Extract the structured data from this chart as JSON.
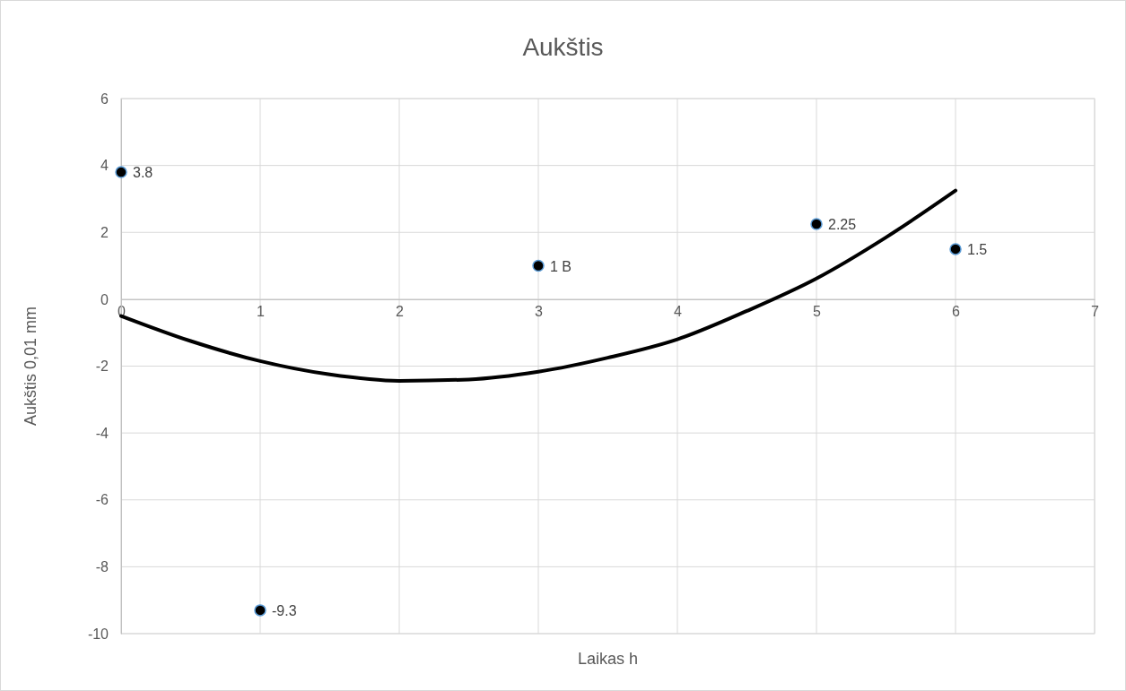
{
  "chart_data": {
    "type": "scatter",
    "title": "Aukštis",
    "xlabel": "Laikas h",
    "ylabel": "Aukštis 0,01 mm",
    "xlim": [
      0,
      7
    ],
    "xticks": [
      0,
      1,
      2,
      3,
      4,
      5,
      6,
      7
    ],
    "ylim": [
      -10,
      6
    ],
    "yticks": [
      -10,
      -8,
      -6,
      -4,
      -2,
      0,
      2,
      4,
      6
    ],
    "grid": true,
    "marker": "circle",
    "series": [
      {
        "color": "#000000",
        "x": [
          0,
          1,
          3,
          5,
          6
        ],
        "values": [
          3.8,
          -9.3,
          1,
          2.25,
          1.5
        ],
        "value_labels": [
          "3.8",
          "-9.3",
          "1 B",
          "2.25",
          "1.5"
        ]
      },
      {
        "type": "line",
        "color": "#000000",
        "marker": "none",
        "x": [
          0,
          0.5,
          1,
          1.5,
          2,
          2.5,
          3,
          3.5,
          4,
          4.5,
          5,
          5.5,
          6
        ],
        "values": [
          -0.5,
          -1.25,
          -1.85,
          -2.25,
          -2.44,
          -2.4,
          -2.17,
          -1.75,
          -1.2,
          -0.35,
          0.62,
          1.85,
          3.25
        ]
      }
    ]
  }
}
